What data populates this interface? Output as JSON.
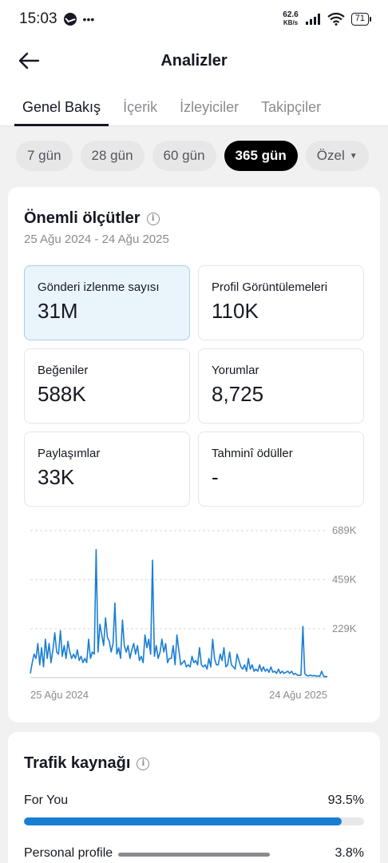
{
  "status_bar": {
    "time": "15:03",
    "dots": "•••",
    "speed_top": "62.6",
    "speed_bottom": "KB/s",
    "battery": "71"
  },
  "header": {
    "title": "Analizler"
  },
  "tabs": [
    {
      "label": "Genel Bakış",
      "active": true
    },
    {
      "label": "İçerik",
      "active": false
    },
    {
      "label": "İzleyiciler",
      "active": false
    },
    {
      "label": "Takipçiler",
      "active": false
    }
  ],
  "periods": [
    {
      "label": "7 gün",
      "active": false
    },
    {
      "label": "28 gün",
      "active": false
    },
    {
      "label": "60 gün",
      "active": false
    },
    {
      "label": "365 gün",
      "active": true
    },
    {
      "label": "Özel",
      "active": false
    }
  ],
  "metrics_card": {
    "title": "Önemli ölçütler",
    "date_range": "25 Ağu 2024 - 24 Ağu 2025",
    "metrics": [
      {
        "label": "Gönderi izlenme sayısı",
        "value": "31M",
        "selected": true
      },
      {
        "label": "Profil Görüntülemeleri",
        "value": "110K",
        "selected": false
      },
      {
        "label": "Beğeniler",
        "value": "588K",
        "selected": false
      },
      {
        "label": "Yorumlar",
        "value": "8,725",
        "selected": false
      },
      {
        "label": "Paylaşımlar",
        "value": "33K",
        "selected": false
      },
      {
        "label": "Tahminî ödüller",
        "value": "-",
        "selected": false
      }
    ]
  },
  "chart_data": {
    "type": "line",
    "title": "",
    "xlabel": "",
    "ylabel": "",
    "ylim": [
      0,
      689000
    ],
    "y_ticks": [
      {
        "value": 689000,
        "label": "689K"
      },
      {
        "value": 459000,
        "label": "459K"
      },
      {
        "value": 229000,
        "label": "229K"
      }
    ],
    "x_labels": [
      "25 Ağu 2024",
      "24 Ağu 2025"
    ],
    "grid": true,
    "line_color": "#1a7ed3",
    "series": [
      {
        "values": [
          20000,
          70000,
          110000,
          90000,
          160000,
          60000,
          140000,
          50000,
          180000,
          90000,
          160000,
          70000,
          130000,
          210000,
          120000,
          110000,
          220000,
          100000,
          150000,
          90000,
          170000,
          120000,
          90000,
          110000,
          90000,
          130000,
          80000,
          100000,
          70000,
          90000,
          70000,
          180000,
          90000,
          120000,
          110000,
          600000,
          120000,
          250000,
          200000,
          150000,
          280000,
          190000,
          170000,
          120000,
          160000,
          350000,
          110000,
          140000,
          90000,
          270000,
          150000,
          120000,
          150000,
          90000,
          130000,
          160000,
          110000,
          150000,
          80000,
          100000,
          70000,
          200000,
          140000,
          180000,
          110000,
          550000,
          100000,
          150000,
          90000,
          120000,
          180000,
          120000,
          160000,
          70000,
          90000,
          90000,
          150000,
          60000,
          200000,
          130000,
          60000,
          70000,
          80000,
          50000,
          60000,
          50000,
          100000,
          70000,
          80000,
          60000,
          140000,
          60000,
          50000,
          60000,
          40000,
          90000,
          50000,
          180000,
          90000,
          60000,
          60000,
          110000,
          80000,
          140000,
          50000,
          60000,
          120000,
          60000,
          50000,
          40000,
          110000,
          80000,
          50000,
          40000,
          60000,
          30000,
          90000,
          40000,
          60000,
          30000,
          40000,
          30000,
          60000,
          30000,
          50000,
          30000,
          40000,
          25000,
          50000,
          25000,
          30000,
          20000,
          40000,
          20000,
          30000,
          20000,
          25000,
          30000,
          20000,
          30000,
          15000,
          20000,
          12000,
          10000,
          12000,
          240000,
          20000,
          10000,
          8000,
          12000,
          8000,
          10000,
          7000,
          8000,
          6000,
          30000,
          6000,
          5000,
          5000
        ]
      }
    ]
  },
  "traffic_card": {
    "title": "Trafik kaynağı",
    "sources": [
      {
        "label": "For You",
        "value": "93.5%",
        "fraction": 0.935
      },
      {
        "label": "Personal profile",
        "value": "3.8%",
        "fraction": 0.038
      }
    ]
  }
}
